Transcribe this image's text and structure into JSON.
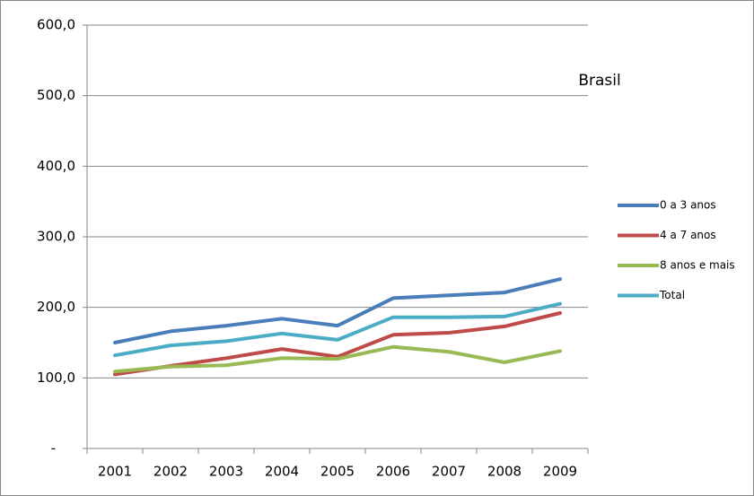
{
  "chart_data": {
    "type": "line",
    "title": "Brasil",
    "categories": [
      "2001",
      "2002",
      "2003",
      "2004",
      "2005",
      "2006",
      "2007",
      "2008",
      "2009"
    ],
    "series": [
      {
        "name": "0 a 3 anos",
        "color": "#4a7ebb",
        "values": [
          150,
          166,
          174,
          184,
          174,
          213,
          217,
          221,
          240
        ]
      },
      {
        "name": "4 a 7 anos",
        "color": "#be4b48",
        "values": [
          105,
          117,
          128,
          141,
          130,
          161,
          164,
          173,
          192
        ]
      },
      {
        "name": "8 anos e mais",
        "color": "#98b954",
        "values": [
          109,
          116,
          118,
          128,
          127,
          144,
          137,
          122,
          138
        ]
      },
      {
        "name": "Total",
        "color": "#4bacc6",
        "values": [
          132,
          146,
          152,
          163,
          154,
          186,
          186,
          187,
          205
        ]
      }
    ],
    "ylim": [
      0,
      600
    ],
    "yticks": [
      {
        "value": 0,
        "label": "-"
      },
      {
        "value": 100,
        "label": "100,0"
      },
      {
        "value": 200,
        "label": "200,0"
      },
      {
        "value": 300,
        "label": "300,0"
      },
      {
        "value": 400,
        "label": "400,0"
      },
      {
        "value": 500,
        "label": "500,0"
      },
      {
        "value": 600,
        "label": "600,0"
      }
    ],
    "grid": true,
    "legend": "right"
  }
}
